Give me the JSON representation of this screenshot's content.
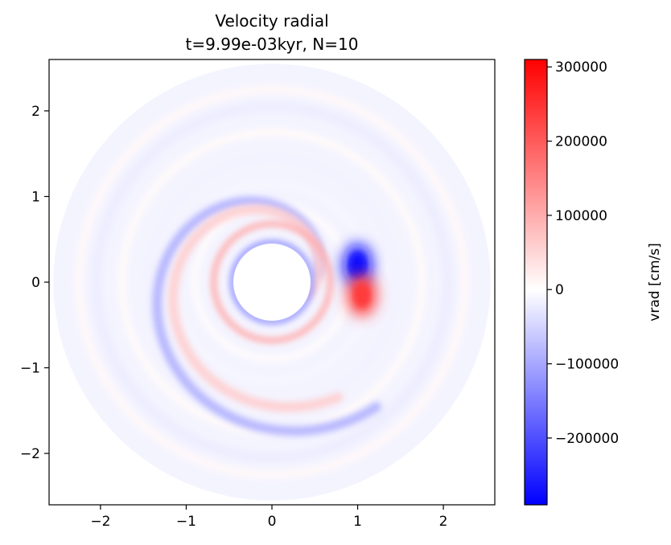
{
  "chart_data": {
    "type": "heatmap",
    "title": "Velocity radial",
    "subtitle": "t=9.99e-03kyr, N=10",
    "xlabel": "",
    "ylabel": "",
    "xlim": [
      -2.6,
      2.6
    ],
    "ylim": [
      -2.6,
      2.6
    ],
    "x_ticks": [
      -2,
      -1,
      0,
      1,
      2
    ],
    "y_ticks": [
      -2,
      -1,
      0,
      1,
      2
    ],
    "x_tick_labels": [
      "−2",
      "−1",
      "0",
      "1",
      "2"
    ],
    "y_tick_labels": [
      "−2",
      "−1",
      "0",
      "1",
      "2"
    ],
    "grid": false,
    "disc": {
      "inner_radius": 0.45,
      "outer_radius": 2.55,
      "colormap": "bwr",
      "features": [
        {
          "shape": "spiral-arm",
          "sign": "negative",
          "value": -90000,
          "r_start": 0.55,
          "r_end": 1.9,
          "angle_start_deg": 10,
          "angle_span_deg": 300
        },
        {
          "shape": "spiral-arm",
          "sign": "positive",
          "value": 60000,
          "r_start": 0.45,
          "r_end": 1.55,
          "angle_start_deg": -20,
          "angle_span_deg": 320
        },
        {
          "shape": "ring",
          "sign": "negative",
          "value": -120000,
          "radius": 0.46
        },
        {
          "shape": "ring",
          "sign": "positive",
          "value": 100000,
          "radius": 0.68
        },
        {
          "shape": "blob",
          "sign": "negative",
          "value": -280000,
          "x": 1.0,
          "y": 0.2
        },
        {
          "shape": "blob",
          "sign": "positive",
          "value": 240000,
          "x": 1.05,
          "y": -0.15
        }
      ]
    },
    "colorbar": {
      "label": "vrad [cm/s]",
      "vmin": -290000,
      "vmax": 310000,
      "ticks": [
        -200000,
        -100000,
        0,
        100000,
        200000,
        300000
      ],
      "tick_labels": [
        "−200000",
        "−100000",
        "0",
        "100000",
        "200000",
        "300000"
      ],
      "colors": {
        "low": "#0000ff",
        "mid": "#ffffff",
        "high": "#ff0000"
      }
    }
  }
}
